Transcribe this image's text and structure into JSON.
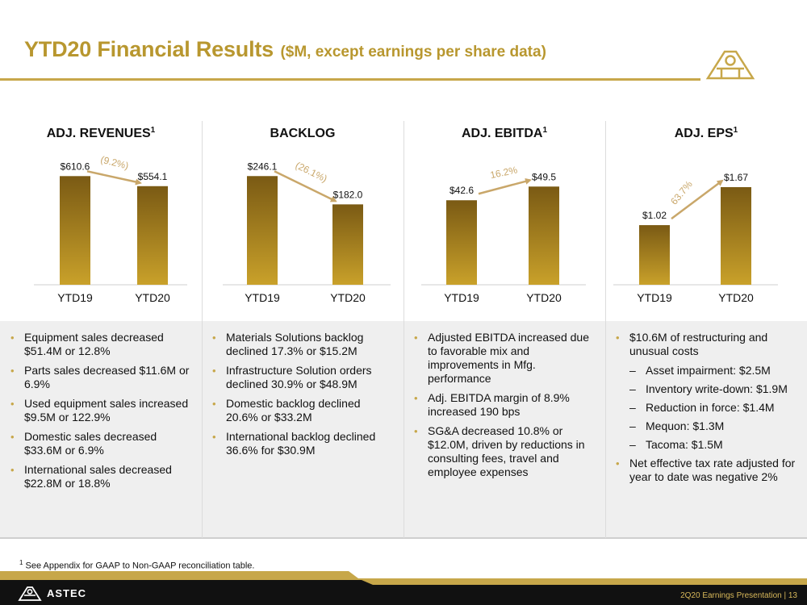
{
  "title": {
    "main": "YTD20 Financial Results",
    "sub": "($M, except earnings per share data)"
  },
  "colors": {
    "accent": "#b8972f",
    "bar_top": "#7a5a14",
    "bar_bottom": "#c9a12a",
    "arrow": "#c9a76a",
    "footer_bg": "#111111"
  },
  "chart_data": [
    {
      "type": "bar",
      "title": "ADJ. REVENUES",
      "footnote_mark": "1",
      "categories": [
        "YTD19",
        "YTD20"
      ],
      "values": [
        610.6,
        554.1
      ],
      "value_labels": [
        "$610.6",
        "$554.1"
      ],
      "change_label": "(9.2%)",
      "direction": "down",
      "ylim": [
        0,
        680
      ]
    },
    {
      "type": "bar",
      "title": "BACKLOG",
      "footnote_mark": "",
      "categories": [
        "YTD19",
        "YTD20"
      ],
      "values": [
        246.1,
        182.0
      ],
      "value_labels": [
        "$246.1",
        "$182.0"
      ],
      "change_label": "(26.1%)",
      "direction": "down",
      "ylim": [
        0,
        274
      ]
    },
    {
      "type": "bar",
      "title": "ADJ. EBITDA",
      "footnote_mark": "1",
      "categories": [
        "YTD19",
        "YTD20"
      ],
      "values": [
        42.6,
        49.5
      ],
      "value_labels": [
        "$42.6",
        "$49.5"
      ],
      "change_label": "16.2%",
      "direction": "up",
      "ylim": [
        0,
        61
      ]
    },
    {
      "type": "bar",
      "title": "ADJ. EPS",
      "footnote_mark": "1",
      "categories": [
        "YTD19",
        "YTD20"
      ],
      "values": [
        1.02,
        1.67
      ],
      "value_labels": [
        "$1.02",
        "$1.67"
      ],
      "change_label": "63.7%",
      "direction": "up",
      "ylim": [
        0,
        2.07
      ]
    }
  ],
  "bullets": [
    [
      {
        "text": "Equipment sales decreased $51.4M or 12.8%"
      },
      {
        "text": "Parts sales decreased $11.6M or 6.9%"
      },
      {
        "text": "Used equipment sales increased $9.5M or 122.9%"
      },
      {
        "text": "Domestic sales decreased $33.6M or 6.9%"
      },
      {
        "text": "International sales decreased $22.8M or 18.8%"
      }
    ],
    [
      {
        "text": "Materials Solutions backlog declined 17.3% or $15.2M"
      },
      {
        "text": "Infrastructure Solution orders declined 30.9% or $48.9M"
      },
      {
        "text": "Domestic backlog declined 20.6% or $33.2M"
      },
      {
        "text": "International backlog declined 36.6% for $30.9M"
      }
    ],
    [
      {
        "text": "Adjusted EBITDA increased due to favorable mix and improvements in Mfg. performance"
      },
      {
        "text": "Adj. EBITDA margin of 8.9% increased 190 bps"
      },
      {
        "text": "SG&A decreased 10.8% or $12.0M, driven by reductions in consulting fees, travel and employee expenses"
      }
    ],
    [
      {
        "text": "$10.6M of restructuring and unusual costs",
        "sub": [
          "Asset impairment: $2.5M",
          "Inventory write-down: $1.9M",
          "Reduction in force: $1.4M",
          "Mequon: $1.3M",
          "Tacoma: $1.5M"
        ]
      },
      {
        "text": "Net effective tax rate adjusted for year to date was negative 2%"
      }
    ]
  ],
  "footnote": {
    "mark": "1",
    "text": "See Appendix for GAAP to Non-GAAP reconciliation table."
  },
  "footer": {
    "brand": "ASTEC",
    "label": "2Q20 Earnings Presentation |",
    "page": "13"
  }
}
